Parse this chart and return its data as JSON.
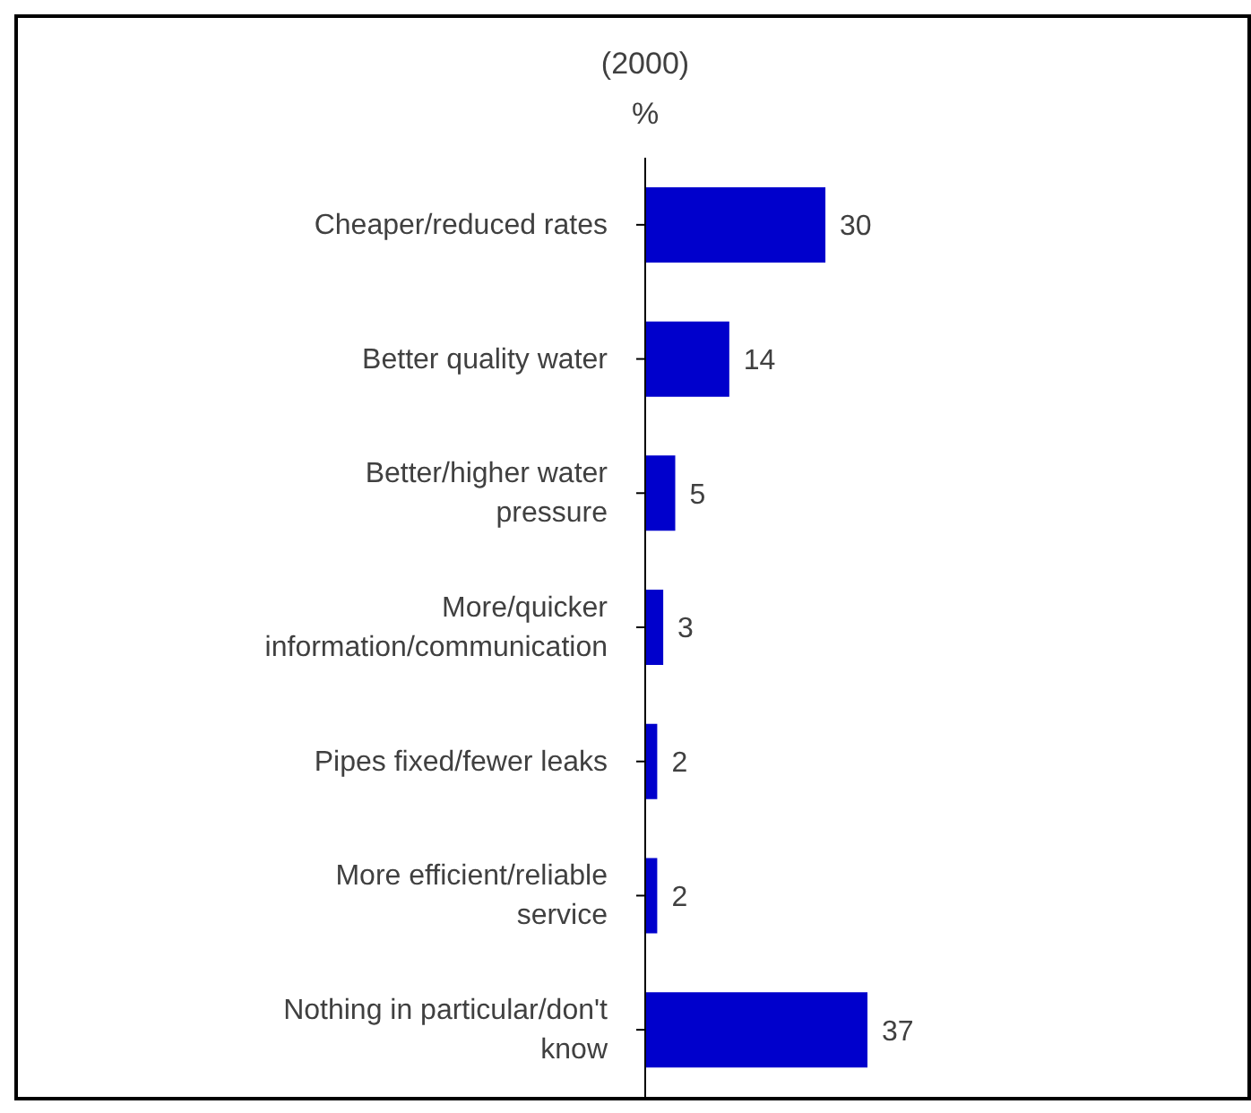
{
  "chart_data": {
    "type": "bar",
    "orientation": "horizontal",
    "title": "(2000)",
    "subtitle": "%",
    "categories": [
      "Cheaper/reduced rates",
      "Better quality water",
      "Better/higher water pressure",
      "More/quicker information/communication",
      "Pipes fixed/fewer leaks",
      "More efficient/reliable service",
      "Nothing in particular/don't know"
    ],
    "values": [
      30,
      14,
      5,
      3,
      2,
      2,
      37
    ],
    "color": "#0000cc",
    "data_labels": true,
    "legend": false,
    "grid": false
  }
}
